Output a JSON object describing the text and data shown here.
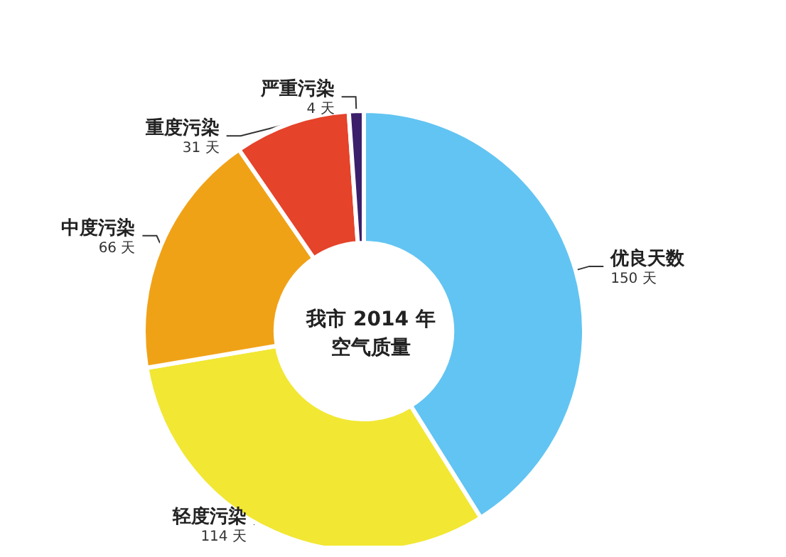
{
  "chart_data": {
    "type": "donut",
    "title": "我市 2014 年",
    "subtitle": "空气质量",
    "categories": [
      "优良天数",
      "轻度污染",
      "中度污染",
      "重度污染",
      "严重污染"
    ],
    "values": [
      150,
      114,
      66,
      31,
      4
    ],
    "value_labels": [
      "150 天",
      "114 天",
      "66 天",
      "31 天",
      "4 天"
    ],
    "colors": [
      "#62c4f2",
      "#f2e733",
      "#f0a216",
      "#e5432a",
      "#3b1f6b"
    ],
    "legend": false
  }
}
